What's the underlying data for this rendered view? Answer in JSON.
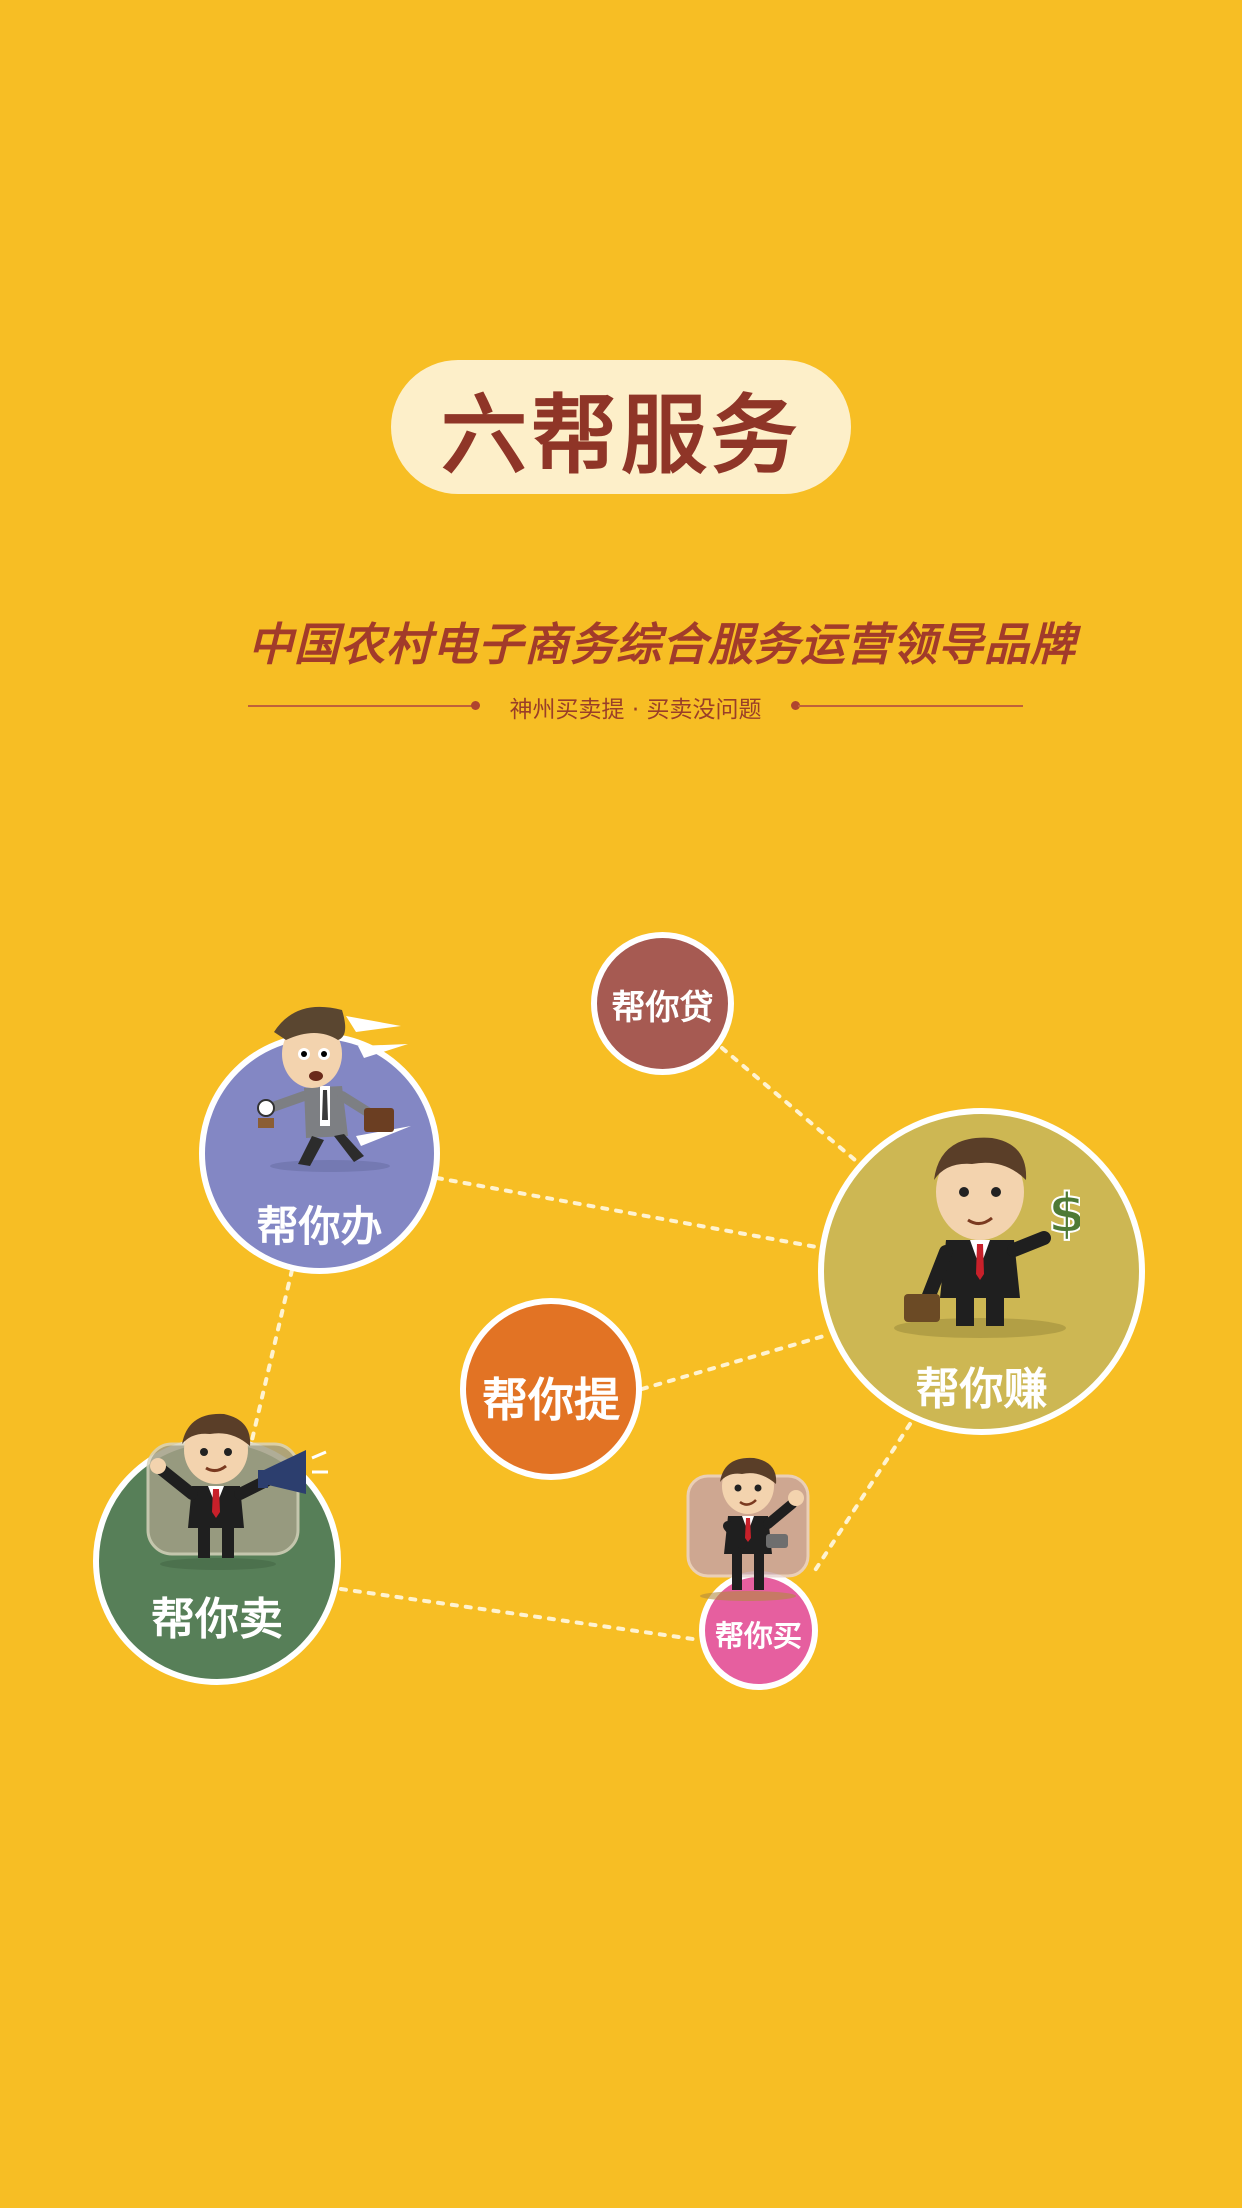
{
  "header": {
    "title": "六帮服务",
    "slogan": "中国农村电子商务综合服务运营领导品牌",
    "subtitle": "神州买卖提 · 买卖没问题"
  },
  "services": {
    "dai": "帮你贷",
    "ban": "帮你办",
    "zhuan": "帮你赚",
    "ti": "帮你提",
    "mai_sell": "帮你卖",
    "mai_buy": "帮你买"
  },
  "colors": {
    "background": "#F7BE24",
    "title_pill": "#FDEFC9",
    "title_text": "#8F3527",
    "dai": "#A65A52",
    "ban": "#8387C4",
    "zhuan": "#CDB753",
    "ti": "#E27324",
    "mai_sell": "#577F58",
    "mai_buy": "#E65F9F"
  },
  "icons": {
    "ban": "running-businessman-icon",
    "zhuan": "businessman-dollar-icon",
    "mai_sell": "businessman-megaphone-icon",
    "mai_buy": "businessman-ok-icon"
  }
}
